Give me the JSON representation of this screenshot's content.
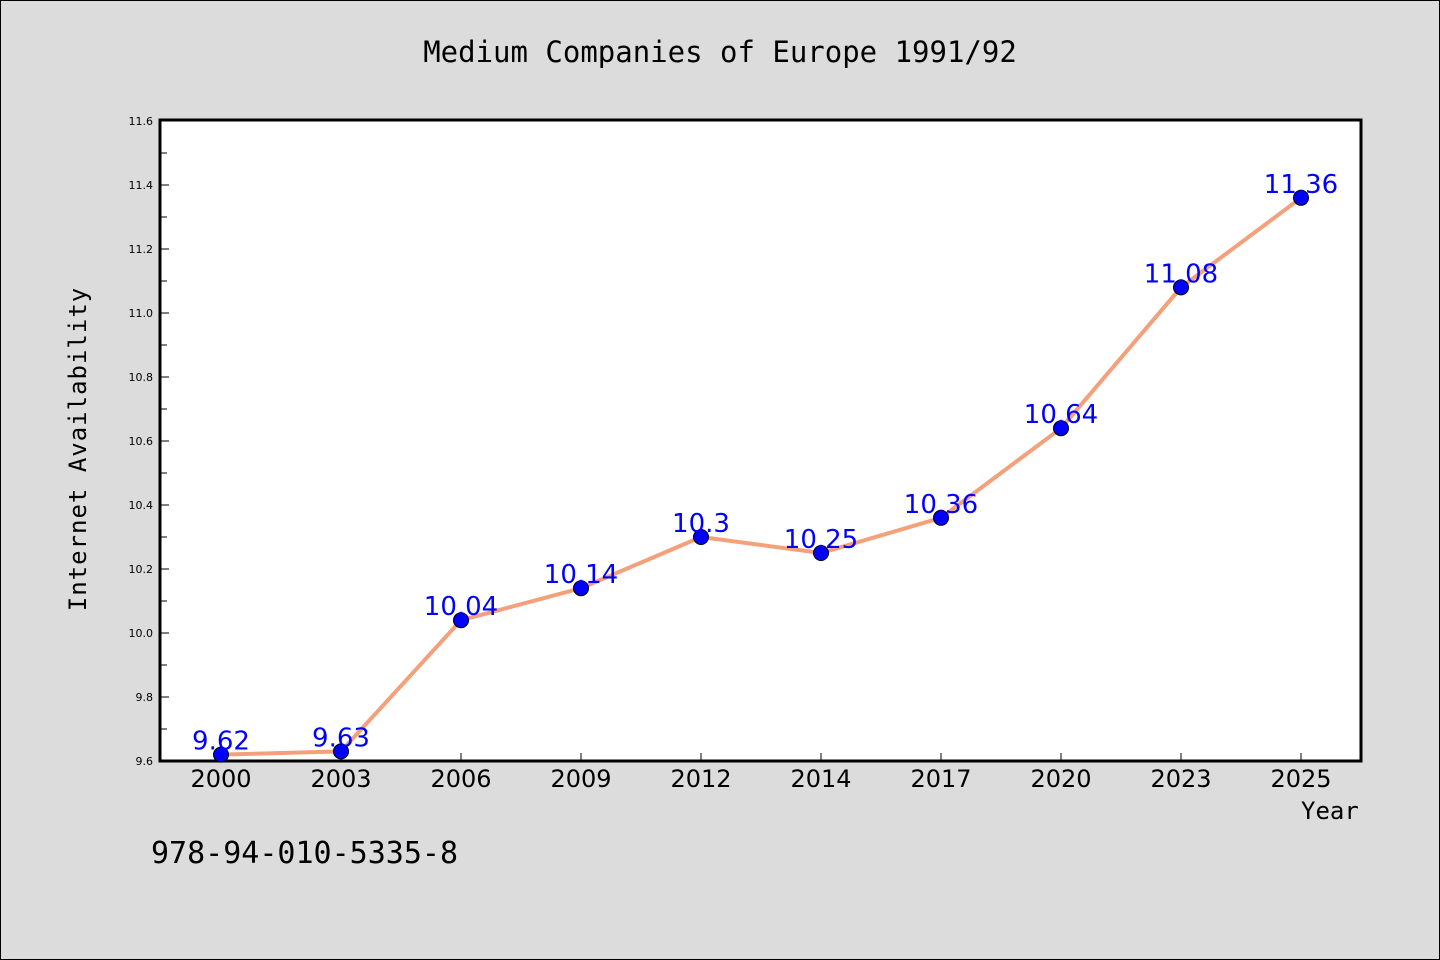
{
  "chart_data": {
    "type": "line",
    "title": "Medium Companies of Europe 1991/92",
    "xlabel": "Year",
    "ylabel": "Internet Availability",
    "categories": [
      "2000",
      "2003",
      "2006",
      "2009",
      "2012",
      "2014",
      "2017",
      "2020",
      "2023",
      "2025"
    ],
    "series": [
      {
        "values": [
          9.62,
          9.63,
          10.04,
          10.14,
          10.3,
          10.25,
          10.36,
          10.64,
          11.08,
          11.36
        ],
        "labels": [
          "9.62",
          "9.63",
          "10.04",
          "10.14",
          "10.3",
          "10.25",
          "10.36",
          "10.64",
          "11.08",
          "11.36"
        ],
        "line_color": "#f4a07a",
        "marker_color": "#0000ff",
        "label_color": "#0000ff"
      }
    ],
    "ylim": [
      9.6,
      11.6
    ],
    "yticks": [
      "9.6",
      "9.8",
      "10.0",
      "10.2",
      "10.4",
      "10.6",
      "10.8",
      "11.0",
      "11.2",
      "11.4",
      "11.6"
    ],
    "grid": false,
    "legend": "none"
  },
  "annotation": "978-94-010-5335-8",
  "colors": {
    "background": "#dcdcdc",
    "plot_background": "#ffffff"
  }
}
